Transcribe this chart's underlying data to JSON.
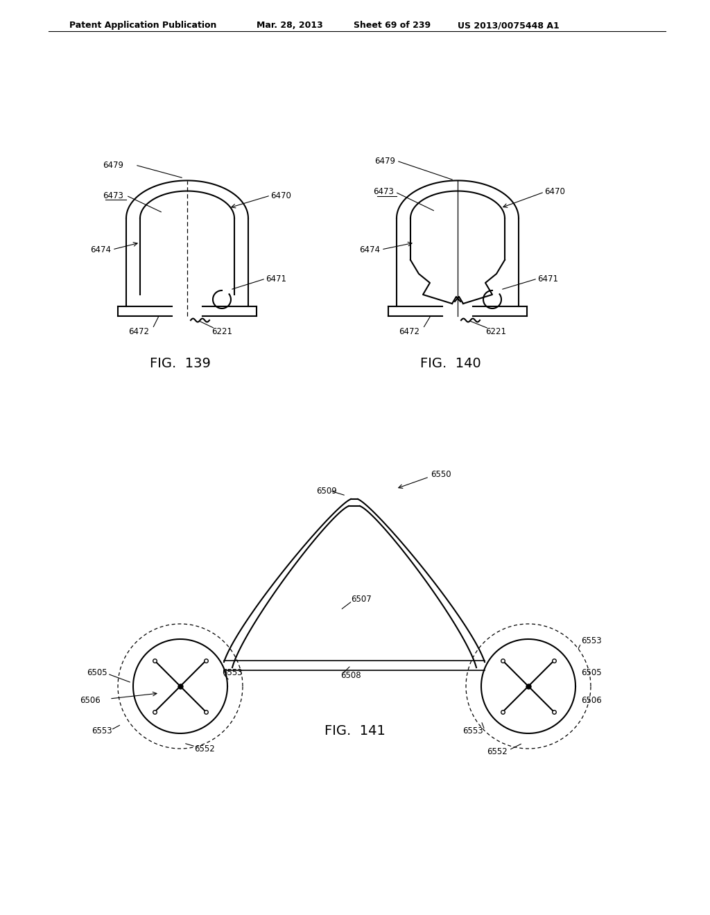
{
  "bg_color": "#ffffff",
  "header_text": "Patent Application Publication",
  "header_date": "Mar. 28, 2013",
  "header_sheet": "Sheet 69 of 239",
  "header_patent": "US 2013/0075448 A1",
  "fig139_caption": "FIG.  139",
  "fig140_caption": "FIG.  140",
  "fig141_caption": "FIG.  141",
  "line_color": "#000000",
  "line_width": 1.5
}
